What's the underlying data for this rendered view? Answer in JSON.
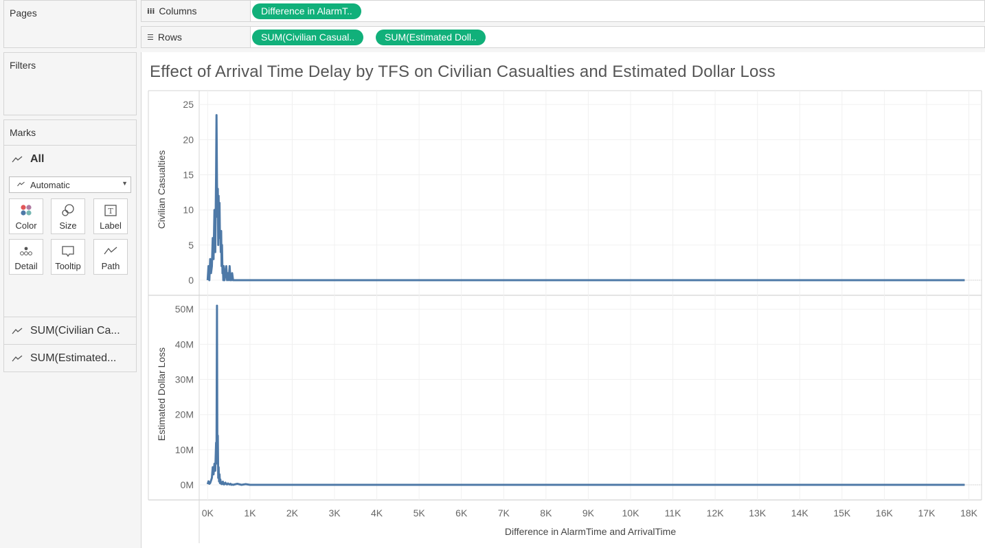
{
  "cards": {
    "pages": "Pages",
    "filters": "Filters",
    "marks": "Marks"
  },
  "marks": {
    "all_label": "All",
    "mark_type": "Automatic",
    "buttons": [
      "Color",
      "Size",
      "Label",
      "Detail",
      "Tooltip",
      "Path"
    ],
    "measures": [
      "SUM(Civilian Ca...",
      "SUM(Estimated..."
    ]
  },
  "shelves": {
    "columns_label": "Columns",
    "rows_label": "Rows",
    "columns_pills": [
      "Difference in AlarmT.."
    ],
    "rows_pills": [
      "SUM(Civilian Casual..",
      "SUM(Estimated Doll.."
    ]
  },
  "chart_data": {
    "type": "line",
    "title": "Effect of Arrival Time Delay by TFS on Civilian Casualties and Estimated Dollar Loss",
    "xlabel": "Difference in AlarmTime and ArrivalTime",
    "x_ticks": [
      "0K",
      "1K",
      "2K",
      "3K",
      "4K",
      "5K",
      "6K",
      "7K",
      "8K",
      "9K",
      "10K",
      "11K",
      "12K",
      "13K",
      "14K",
      "15K",
      "16K",
      "17K",
      "18K"
    ],
    "xlim": [
      -200,
      18300
    ],
    "color": "#4e79a7",
    "panes": [
      {
        "ylabel": "Civilian Casualties",
        "ylim": [
          0,
          26
        ],
        "y_ticks": [
          {
            "v": 0,
            "t": "0"
          },
          {
            "v": 5,
            "t": "5"
          },
          {
            "v": 10,
            "t": "10"
          },
          {
            "v": 15,
            "t": "15"
          },
          {
            "v": 20,
            "t": "20"
          },
          {
            "v": 25,
            "t": "25"
          }
        ],
        "x": [
          0,
          20,
          40,
          60,
          80,
          100,
          120,
          140,
          160,
          180,
          200,
          210,
          220,
          230,
          240,
          250,
          260,
          270,
          280,
          290,
          300,
          310,
          320,
          330,
          340,
          350,
          360,
          370,
          380,
          390,
          400,
          420,
          440,
          460,
          480,
          500,
          520,
          540,
          560,
          580,
          600,
          700,
          800,
          1000,
          2000,
          5000,
          10000,
          15000,
          17900
        ],
        "y": [
          0,
          2,
          0,
          3,
          1,
          2,
          6,
          3,
          10,
          4,
          15,
          23.5,
          14,
          9,
          13,
          5,
          12,
          7,
          11,
          6,
          7,
          4,
          7,
          2,
          5,
          1,
          2,
          0,
          2,
          1,
          0,
          1,
          2,
          0,
          1,
          0,
          2,
          0,
          0,
          1,
          0,
          0,
          0,
          0,
          0,
          0,
          0,
          0,
          0
        ]
      },
      {
        "ylabel": "Estimated Dollar Loss",
        "ylim": [
          0,
          52000000
        ],
        "y_ticks": [
          {
            "v": 0,
            "t": "0M"
          },
          {
            "v": 10000000,
            "t": "10M"
          },
          {
            "v": 20000000,
            "t": "20M"
          },
          {
            "v": 30000000,
            "t": "30M"
          },
          {
            "v": 40000000,
            "t": "40M"
          },
          {
            "v": 50000000,
            "t": "50M"
          }
        ],
        "x": [
          0,
          20,
          40,
          60,
          80,
          100,
          120,
          140,
          160,
          180,
          200,
          210,
          220,
          230,
          240,
          250,
          260,
          270,
          280,
          290,
          300,
          310,
          320,
          330,
          340,
          350,
          360,
          370,
          380,
          390,
          400,
          420,
          440,
          460,
          480,
          500,
          520,
          540,
          560,
          580,
          600,
          700,
          800,
          900,
          1000,
          2000,
          5000,
          10000,
          15000,
          17900
        ],
        "y": [
          200000,
          1000000,
          300000,
          500000,
          1200000,
          2000000,
          5000000,
          3000000,
          6000000,
          4000000,
          12000000,
          8000000,
          51000000,
          6000000,
          14000000,
          2000000,
          5000000,
          1000000,
          3000000,
          500000,
          1500000,
          400000,
          800000,
          200000,
          600000,
          300000,
          900000,
          200000,
          500000,
          100000,
          300000,
          600000,
          200000,
          100000,
          400000,
          200000,
          100000,
          300000,
          0,
          100000,
          0,
          300000,
          0,
          200000,
          0,
          0,
          0,
          0,
          0,
          0
        ]
      }
    ]
  }
}
